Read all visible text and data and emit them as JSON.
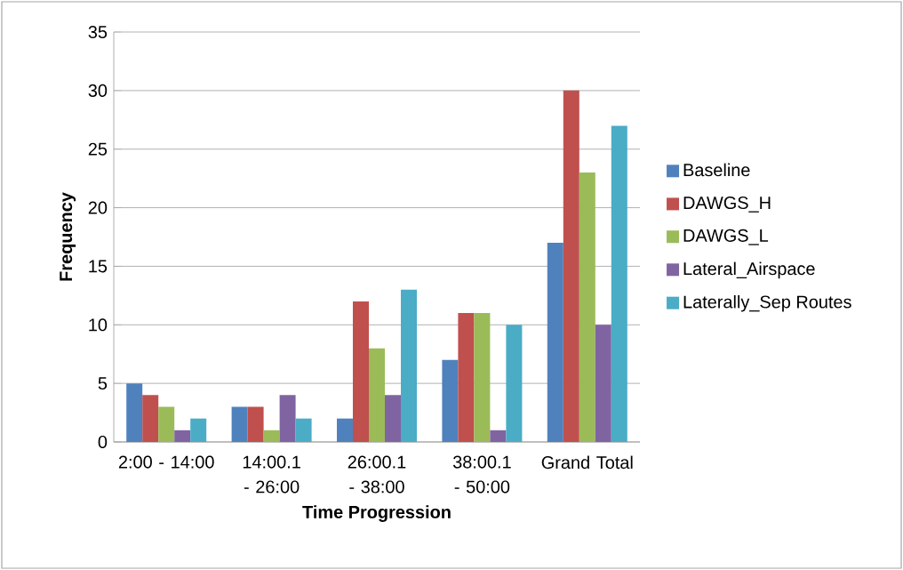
{
  "chart_data": {
    "type": "bar",
    "xlabel": "Time Progression",
    "ylabel": "Frequency",
    "categories": [
      "2:00 - 14:00",
      "14:00.1 - 26:00",
      "26:00.1 - 38:00",
      "38:00.1 - 50:00",
      "Grand Total"
    ],
    "series": [
      {
        "name": "Baseline",
        "color": "#4f81bd",
        "values": [
          5,
          3,
          2,
          7,
          17
        ]
      },
      {
        "name": "DAWGS_H",
        "color": "#c0504d",
        "values": [
          4,
          3,
          12,
          11,
          30
        ]
      },
      {
        "name": "DAWGS_L",
        "color": "#9bbb59",
        "values": [
          3,
          1,
          8,
          11,
          23
        ]
      },
      {
        "name": "Lateral_Airspace",
        "color": "#8064a2",
        "values": [
          1,
          4,
          4,
          1,
          10
        ]
      },
      {
        "name": "Laterally_Sep Routes",
        "color": "#4bacc6",
        "values": [
          2,
          2,
          13,
          10,
          27
        ]
      }
    ],
    "ylim": [
      0,
      35
    ],
    "yticks": [
      0,
      5,
      10,
      15,
      20,
      25,
      30,
      35
    ],
    "grid": "y",
    "legend": "right"
  }
}
